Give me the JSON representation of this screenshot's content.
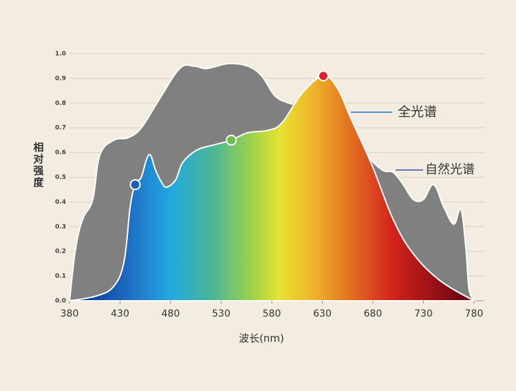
{
  "chart_data": {
    "type": "area",
    "y_label": "相对强度",
    "x_label": "波长(nm)",
    "xlim": [
      380,
      780
    ],
    "xticks": [
      380,
      430,
      480,
      530,
      580,
      630,
      680,
      730,
      780
    ],
    "ylim": [
      0,
      1
    ],
    "yticks": [
      {
        "value": 0,
        "label": "0.0"
      },
      0.1,
      0.2,
      0.3,
      0.4,
      0.5,
      0.6,
      0.7,
      0.8,
      0.9,
      {
        "value": 1,
        "label": "1.0"
      }
    ],
    "grid": true,
    "series": [
      {
        "name": "自然光谱",
        "color": "#808080",
        "x": [
          380,
          386,
          393,
          403,
          410,
          424,
          438,
          451,
          468,
          489,
          503,
          516,
          537,
          556,
          570,
          583,
          597,
          610,
          630,
          651,
          672,
          689,
          700,
          710,
          720,
          730,
          740,
          750,
          760,
          767,
          772,
          775,
          780
        ],
        "values": [
          0,
          0.21,
          0.33,
          0.41,
          0.59,
          0.65,
          0.66,
          0.7,
          0.81,
          0.94,
          0.95,
          0.94,
          0.96,
          0.95,
          0.91,
          0.83,
          0.8,
          0.79,
          0.77,
          0.73,
          0.6,
          0.53,
          0.52,
          0.47,
          0.41,
          0.41,
          0.47,
          0.38,
          0.31,
          0.37,
          0.21,
          0.05,
          0
        ]
      },
      {
        "name": "全光谱",
        "color": "#1f6fd0",
        "x": [
          380,
          407,
          424,
          434,
          440,
          445,
          451,
          456,
          460,
          465,
          471,
          476,
          485,
          492,
          506,
          522,
          540,
          556,
          576,
          590,
          610,
          631,
          645,
          658,
          679,
          700,
          720,
          747,
          780
        ],
        "values": [
          0,
          0.02,
          0.06,
          0.16,
          0.38,
          0.47,
          0.5,
          0.57,
          0.59,
          0.53,
          0.48,
          0.46,
          0.49,
          0.56,
          0.61,
          0.63,
          0.65,
          0.68,
          0.69,
          0.72,
          0.84,
          0.91,
          0.86,
          0.74,
          0.55,
          0.33,
          0.19,
          0.08,
          0
        ]
      }
    ],
    "points": [
      {
        "x": 445,
        "y": 0.47,
        "color": "#1d5fb0"
      },
      {
        "x": 540,
        "y": 0.65,
        "color": "#6cc04a"
      },
      {
        "x": 631,
        "y": 0.91,
        "color": "#d9252a"
      }
    ]
  }
}
